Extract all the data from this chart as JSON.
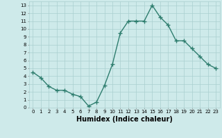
{
  "x": [
    0,
    1,
    2,
    3,
    4,
    5,
    6,
    7,
    8,
    9,
    10,
    11,
    12,
    13,
    14,
    15,
    16,
    17,
    18,
    19,
    20,
    21,
    22,
    23
  ],
  "y": [
    4.5,
    3.8,
    2.7,
    2.2,
    2.2,
    1.7,
    1.4,
    0.2,
    0.7,
    2.8,
    5.5,
    9.5,
    11.0,
    11.0,
    11.0,
    13.0,
    11.5,
    10.5,
    8.5,
    8.5,
    7.5,
    6.5,
    5.5,
    5.0
  ],
  "line_color": "#2e7d6e",
  "marker": "+",
  "marker_size": 4,
  "marker_lw": 1.0,
  "linewidth": 1.0,
  "background_color": "#ceeaea",
  "grid_color": "#aacfcf",
  "xlabel": "Humidex (Indice chaleur)",
  "xlabel_fontsize": 7,
  "tick_fontsize": 5,
  "xtick_labels": [
    "0",
    "1",
    "2",
    "3",
    "4",
    "5",
    "6",
    "7",
    "8",
    "9",
    "10",
    "11",
    "12",
    "13",
    "14",
    "15",
    "16",
    "17",
    "18",
    "19",
    "20",
    "21",
    "22",
    "23"
  ],
  "ytick_labels": [
    "0",
    "1",
    "2",
    "3",
    "4",
    "5",
    "6",
    "7",
    "8",
    "9",
    "10",
    "11",
    "12",
    "13"
  ],
  "ylim": [
    0,
    13.5
  ],
  "xlim": [
    -0.5,
    23.5
  ]
}
